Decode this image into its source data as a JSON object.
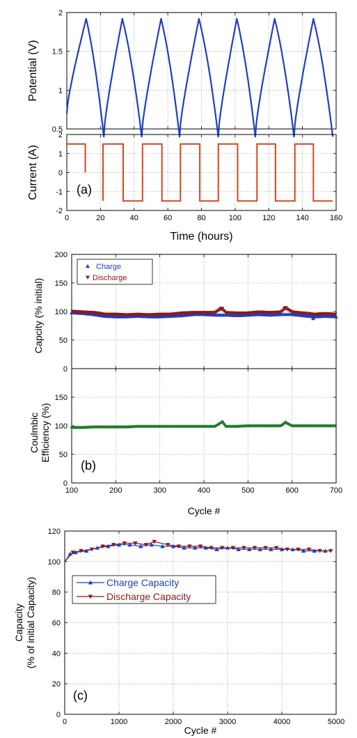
{
  "colors": {
    "potential": "#1f3fbf",
    "current": "#d2461e",
    "charge": "#1f3fbf",
    "discharge": "#8b1a1a",
    "efficiency": "#1f7a2a",
    "grid": "#a8a8a8"
  },
  "chart_data": [
    {
      "id": "a_potential",
      "type": "line",
      "panel_label": "",
      "xlabel": "",
      "ylabel": "Potential (V)",
      "xlim": [
        0,
        160
      ],
      "ylim": [
        0.5,
        2
      ],
      "x_ticks": [
        "0",
        "20",
        "40",
        "60",
        "80",
        "100",
        "120",
        "140",
        "160"
      ],
      "y_ticks": [
        "0.5",
        "1",
        "1.5",
        "2"
      ],
      "grid": true,
      "series": [
        {
          "x": [
            0,
            11.5,
            22,
            33,
            44.5,
            56,
            67,
            78.5,
            90,
            101,
            112,
            123.5,
            135,
            146.5,
            158
          ],
          "values": [
            0.7,
            1.92,
            0.4,
            1.92,
            0.4,
            1.92,
            0.4,
            1.92,
            0.4,
            1.92,
            0.4,
            1.92,
            0.4,
            1.92,
            0.4
          ]
        }
      ]
    },
    {
      "id": "a_current",
      "type": "line",
      "panel_label": "(a)",
      "xlabel": "Time (hours)",
      "ylabel": "Current (A)",
      "xlim": [
        0,
        160
      ],
      "ylim": [
        -2,
        2
      ],
      "x_ticks": [
        "0",
        "20",
        "40",
        "60",
        "80",
        "100",
        "120",
        "140",
        "160"
      ],
      "y_ticks": [
        "-2",
        "-1",
        "0",
        "1",
        "2"
      ],
      "grid": true,
      "series": [
        {
          "x": [
            0,
            11,
            11
          ],
          "values": [
            1.5,
            1.5,
            0
          ]
        },
        {
          "x": [
            21.5,
            21.5,
            33.5,
            33.5,
            45,
            45,
            56.5,
            56.5,
            67.5,
            67.5,
            79,
            79,
            90,
            90,
            101.5,
            101.5,
            113,
            113,
            124,
            124,
            135.5,
            135.5,
            146.5,
            146.5,
            158
          ],
          "values": [
            -1.5,
            1.5,
            1.5,
            -1.5,
            -1.5,
            1.5,
            1.5,
            -1.5,
            -1.5,
            1.5,
            1.5,
            -1.5,
            -1.5,
            1.5,
            1.5,
            -1.5,
            -1.5,
            1.5,
            1.5,
            -1.5,
            -1.5,
            1.5,
            1.5,
            -1.5,
            -1.5
          ]
        }
      ]
    },
    {
      "id": "b_capacity",
      "type": "scatter",
      "panel_label": "",
      "xlabel": "",
      "ylabel": "Capcity (% initial)",
      "xlim": [
        100,
        700
      ],
      "ylim": [
        0,
        200
      ],
      "y_ticks": [
        "0",
        "50",
        "100",
        "150",
        "200"
      ],
      "grid": true,
      "legend_position": "top-left",
      "series": [
        {
          "name": "Charge",
          "x": [
            100,
            125,
            150,
            175,
            200,
            225,
            250,
            275,
            300,
            325,
            350,
            375,
            400,
            425,
            450,
            475,
            500,
            525,
            550,
            575,
            600,
            625,
            650,
            675,
            700
          ],
          "values": [
            98,
            97,
            95,
            92,
            91,
            91,
            92,
            91,
            91,
            92,
            93,
            95,
            95,
            94,
            94,
            93,
            94,
            95,
            94,
            95,
            95,
            93,
            91,
            92,
            91
          ]
        },
        {
          "name": "Discharge",
          "x": [
            100,
            125,
            150,
            175,
            200,
            225,
            250,
            275,
            300,
            325,
            350,
            375,
            400,
            425,
            440,
            450,
            475,
            500,
            525,
            550,
            575,
            585,
            600,
            625,
            650,
            675,
            700
          ],
          "values": [
            100,
            99,
            98,
            95,
            95,
            94,
            95,
            94,
            95,
            95,
            97,
            98,
            98,
            98,
            105,
            98,
            97,
            97,
            99,
            98,
            99,
            106,
            99,
            97,
            95,
            96,
            95
          ]
        }
      ]
    },
    {
      "id": "b_efficiency",
      "type": "scatter",
      "panel_label": "(b)",
      "xlabel": "Cycle #",
      "ylabel_lines": [
        "Coulmbic",
        "Efficiency (%)"
      ],
      "xlim": [
        100,
        700
      ],
      "ylim": [
        0,
        200
      ],
      "x_ticks": [
        "100",
        "200",
        "300",
        "400",
        "500",
        "600",
        "700"
      ],
      "y_ticks": [
        "0",
        "50",
        "100",
        "150"
      ],
      "grid": true,
      "series": [
        {
          "x": [
            100,
            125,
            150,
            175,
            200,
            225,
            250,
            275,
            300,
            325,
            350,
            375,
            400,
            425,
            442,
            450,
            475,
            500,
            525,
            550,
            575,
            585,
            600,
            625,
            650,
            675,
            700
          ],
          "values": [
            97,
            97,
            98,
            98,
            98,
            98,
            99,
            99,
            99,
            99,
            99,
            99,
            99,
            99,
            107,
            99,
            99,
            100,
            100,
            100,
            100,
            106,
            100,
            100,
            100,
            100,
            100
          ]
        }
      ]
    },
    {
      "id": "c_capacity",
      "type": "line",
      "panel_label": "(c)",
      "xlabel": "Cycle #",
      "ylabel_lines": [
        "Capacity",
        "(% of initial Capacity)"
      ],
      "xlim": [
        0,
        5000
      ],
      "ylim": [
        0,
        120
      ],
      "x_ticks": [
        "0",
        "1000",
        "2000",
        "3000",
        "4000",
        "5000"
      ],
      "y_ticks": [
        "0",
        "20",
        "40",
        "60",
        "80",
        "100",
        "120"
      ],
      "grid": true,
      "legend_position": "center-left",
      "series": [
        {
          "name": "Charge Capacity",
          "x": [
            0,
            100,
            200,
            400,
            600,
            800,
            1000,
            1200,
            1400,
            1600,
            1800,
            2000,
            2200,
            2400,
            2600,
            2800,
            3000,
            3200,
            3400,
            3600,
            3800,
            4000,
            4200,
            4400,
            4600,
            4800
          ],
          "values": [
            100,
            105,
            106,
            107,
            109,
            110,
            111,
            111,
            110,
            111,
            110,
            110,
            109,
            109,
            109,
            108,
            109,
            108,
            108,
            108,
            108,
            108,
            108,
            107,
            107,
            107
          ]
        },
        {
          "name": "Discharge Capacity",
          "x": [
            0,
            150,
            300,
            500,
            700,
            900,
            1100,
            1300,
            1500,
            1650,
            1900,
            2100,
            2300,
            2500,
            2700,
            2900,
            3100,
            3300,
            3500,
            3700,
            3900,
            4100,
            4300,
            4500,
            4700,
            4900
          ],
          "values": [
            100,
            106,
            107,
            108,
            110,
            111,
            112,
            112,
            111,
            113,
            111,
            110,
            110,
            110,
            109,
            109,
            109,
            109,
            109,
            109,
            109,
            108,
            108,
            108,
            107,
            107
          ]
        }
      ]
    }
  ]
}
